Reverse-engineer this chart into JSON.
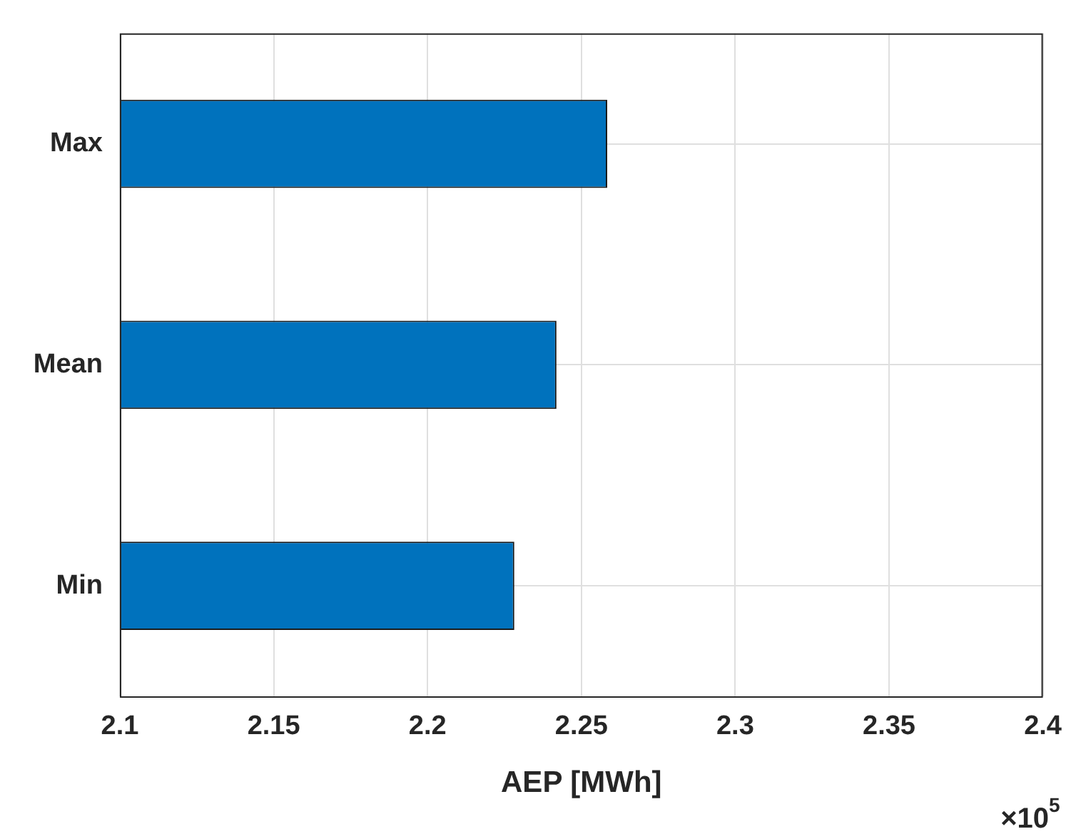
{
  "chart_data": {
    "type": "bar",
    "orientation": "horizontal",
    "categories": [
      "Max",
      "Mean",
      "Min"
    ],
    "values": [
      2.2584,
      2.2419,
      2.2282
    ],
    "color": "#0072bd",
    "xlim": [
      2.1,
      2.4
    ],
    "xticks": [
      2.1,
      2.15,
      2.2,
      2.25,
      2.3,
      2.35,
      2.4
    ],
    "xlabel": "AEP [MWh]",
    "annotations": [
      "×10$^{5}$"
    ],
    "grid": true
  }
}
